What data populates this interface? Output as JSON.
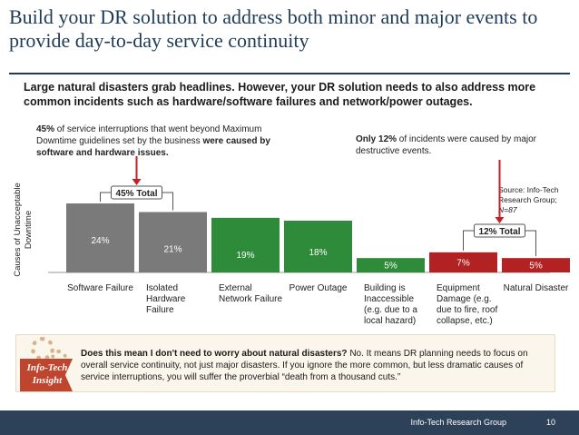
{
  "slide": {
    "title": "Build your DR solution to address both minor and major events to provide day-to-day service continuity",
    "subtitle": "Large natural disasters grab headlines. However, your DR solution needs to also address more common incidents such as hardware/software failures and network/power outages."
  },
  "callouts": {
    "left": {
      "pct": "45%",
      "text": " of service interruptions that went beyond Maximum Downtime guidelines set by the business ",
      "bold": "were caused by software and hardware issues."
    },
    "right": {
      "bold": "Only 12%",
      "text": " of incidents were caused by major destructive events."
    }
  },
  "source": {
    "label": "Source: Info-Tech Research Group; ",
    "n": "N=87"
  },
  "chart_data": {
    "type": "bar",
    "categories": [
      "Software Failure",
      "Isolated Hardware Failure",
      "External Network Failure",
      "Power Outage",
      "Building is Inaccessible (e.g. due to a local hazard)",
      "Equipment Damage (e.g. due to fire, roof collapse, etc.)",
      "Natural Disaster"
    ],
    "category_lines": [
      [
        "Software Failure"
      ],
      [
        "Isolated",
        "Hardware",
        "Failure"
      ],
      [
        "External",
        "Network Failure"
      ],
      [
        "Power Outage"
      ],
      [
        "Building is",
        "Inaccessible",
        "(e.g. due to a",
        "local hazard)"
      ],
      [
        "Equipment",
        "Damage (e.g.",
        "due to fire, roof",
        "collapse, etc.)"
      ],
      [
        "Natural Disaster"
      ]
    ],
    "values": [
      24,
      21,
      19,
      18,
      5,
      7,
      5
    ],
    "value_labels": [
      "24%",
      "21%",
      "19%",
      "18%",
      "5%",
      "7%",
      "5%"
    ],
    "colors": [
      "#7a7a7a",
      "#7a7a7a",
      "#2e8b3a",
      "#2e8b3a",
      "#2e8b3a",
      "#b22222",
      "#b22222"
    ],
    "ylabel": "Causes of Unacceptable Downtime",
    "ylim": [
      0,
      24
    ],
    "grid": false,
    "brackets": [
      {
        "label": "45% Total",
        "from": 0,
        "to": 1,
        "arrow_color": "#c0222a"
      },
      {
        "label": "12% Total",
        "from": 5,
        "to": 6,
        "arrow_color": "#c0222a"
      }
    ]
  },
  "insight": {
    "badge_line1": "Info-Tech",
    "badge_line2": "Insight",
    "bold": "Does this mean I don't need to worry about natural disasters?",
    "text": " No. It means DR planning needs to focus on overall service continuity, not just major disasters. If you ignore the more common, but less dramatic causes of service interruptions, you will suffer the proverbial “death from a thousand cuts.”"
  },
  "footer": {
    "org": "Info-Tech Research Group",
    "page": "10"
  }
}
